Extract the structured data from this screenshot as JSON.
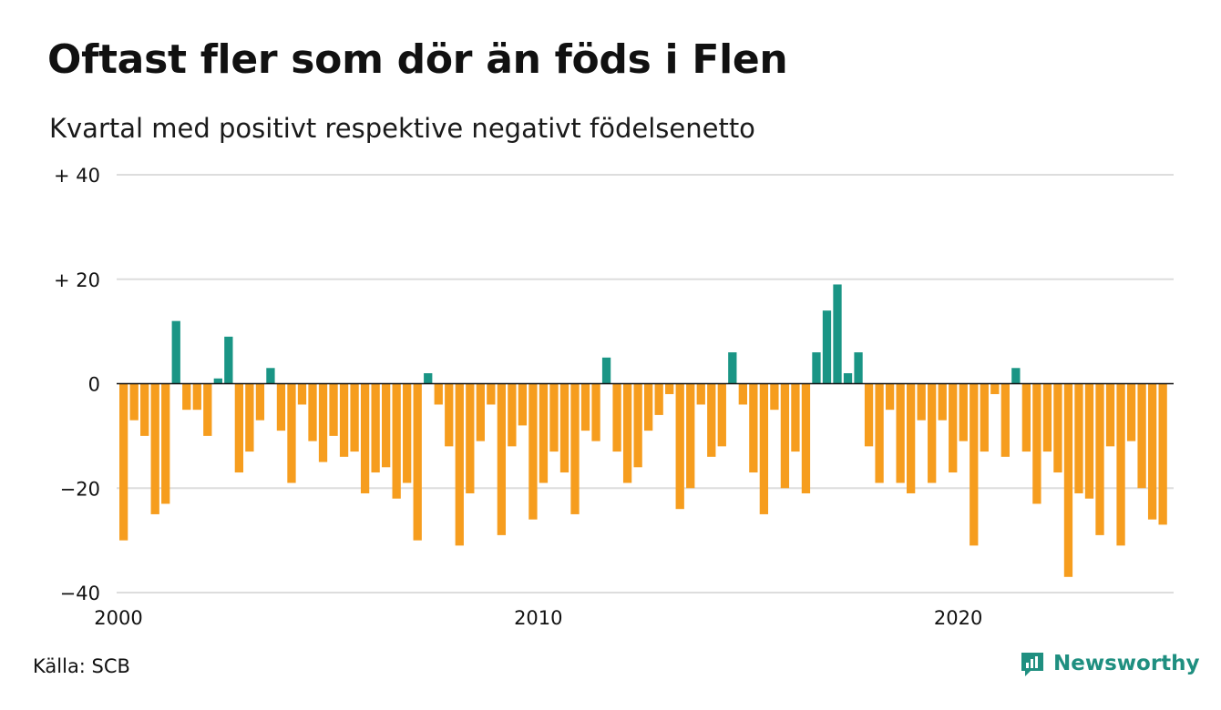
{
  "title": "Oftast fler som dör än föds i Flen",
  "subtitle": "Kvartal med positivt respektive negativt födelsenetto",
  "source": "Källa: SCB",
  "brand": {
    "name": "Newsworthy",
    "icon": "newsworthy-logo-icon"
  },
  "colors": {
    "positive": "#1a9585",
    "negative": "#f69d1e",
    "grid": "#dddddd",
    "zero": "#111111"
  },
  "chart_data": {
    "type": "bar",
    "title": "Oftast fler som dör än föds i Flen",
    "subtitle": "Kvartal med positivt respektive negativt födelsenetto",
    "xlabel": "",
    "ylabel": "",
    "x_start_year": 2000,
    "periods_per_year": 4,
    "ylim": [
      -40,
      40
    ],
    "y_ticks": [
      {
        "value": 40,
        "label": "+ 40"
      },
      {
        "value": 20,
        "label": "+ 20"
      },
      {
        "value": 0,
        "label": "0"
      },
      {
        "value": -20,
        "label": "−20"
      },
      {
        "value": -40,
        "label": "−40"
      }
    ],
    "x_ticks": [
      {
        "year": 2000,
        "label": "2000"
      },
      {
        "year": 2010,
        "label": "2010"
      },
      {
        "year": 2020,
        "label": "2020"
      }
    ],
    "values": [
      -30,
      -7,
      -10,
      -25,
      -23,
      12,
      -5,
      -5,
      -10,
      1,
      9,
      -17,
      -13,
      -7,
      3,
      -9,
      -19,
      -4,
      -11,
      -15,
      -10,
      -14,
      -13,
      -21,
      -17,
      -16,
      -22,
      -19,
      -30,
      2,
      -4,
      -12,
      -31,
      -21,
      -11,
      -4,
      -29,
      -12,
      -8,
      -26,
      -19,
      -13,
      -17,
      -25,
      -9,
      -11,
      5,
      -13,
      -19,
      -16,
      -9,
      -6,
      -2,
      -24,
      -20,
      -4,
      -14,
      -12,
      6,
      -4,
      -17,
      -25,
      -5,
      -20,
      -13,
      -21,
      6,
      14,
      19,
      2,
      6,
      -12,
      -19,
      -5,
      -19,
      -21,
      -7,
      -19,
      -7,
      -17,
      -11,
      -31,
      -13,
      -2,
      -14,
      3,
      -13,
      -23,
      -13,
      -17,
      -37,
      -21,
      -22,
      -29,
      -12,
      -31,
      -11,
      -20,
      -26,
      -27
    ],
    "grid": true,
    "legend": "none"
  }
}
